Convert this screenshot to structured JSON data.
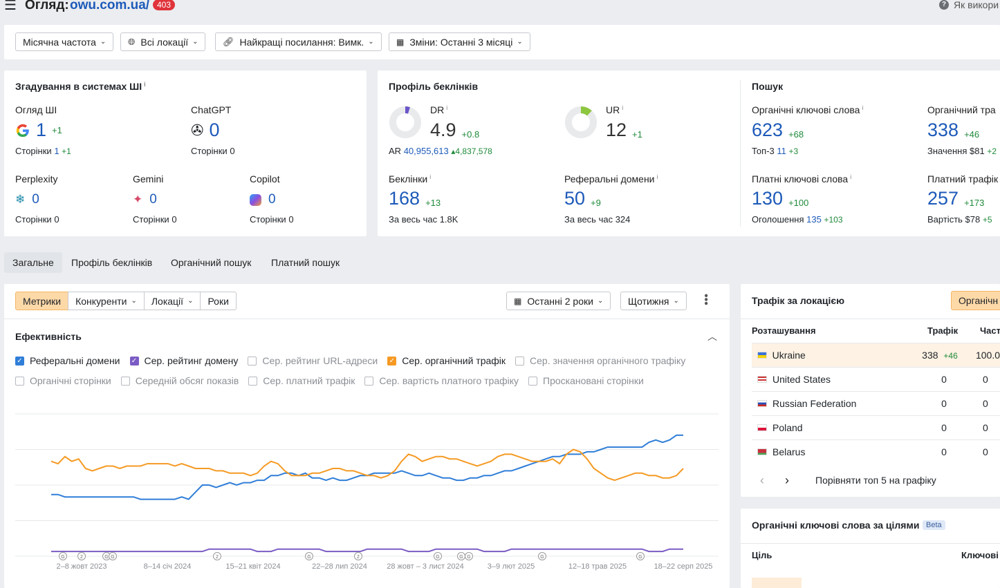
{
  "header": {
    "title_prefix": "Огляд:",
    "domain": "owu.com.ua/",
    "badge": "403",
    "help_text": "Як викори"
  },
  "filters": {
    "frequency": "Місячна частота",
    "locations": "Всі локації",
    "best_links": "Найкращі посилання: Вимк.",
    "changes": "Зміни: Останні 3 місяці"
  },
  "ai_mentions": {
    "title": "Згадування в системах ШІ",
    "overview": {
      "label": "Огляд ШІ",
      "value": "1",
      "delta": "+1",
      "pages_label": "Сторінки",
      "pages": "1",
      "pages_delta": "+1"
    },
    "chatgpt": {
      "label": "ChatGPT",
      "value": "0",
      "pages_label": "Сторінки",
      "pages": "0"
    },
    "perplexity": {
      "label": "Perplexity",
      "value": "0",
      "pages_label": "Сторінки",
      "pages": "0"
    },
    "gemini": {
      "label": "Gemini",
      "value": "0",
      "pages_label": "Сторінки",
      "pages": "0"
    },
    "copilot": {
      "label": "Copilot",
      "value": "0",
      "pages_label": "Сторінки",
      "pages": "0"
    }
  },
  "backlinks": {
    "title": "Профіль беклінків",
    "dr": {
      "label": "DR",
      "value": "4.9",
      "delta": "+0.8",
      "fill": 0.049
    },
    "ar": {
      "label": "AR",
      "value": "40,955,613",
      "delta": "4,837,578"
    },
    "ur": {
      "label": "UR",
      "value": "12",
      "delta": "+1",
      "fill": 0.12
    },
    "links": {
      "label": "Беклінки",
      "value": "168",
      "delta": "+13",
      "all_label": "За весь час",
      "all": "1.8K"
    },
    "ref_domains": {
      "label": "Реферальні домени",
      "value": "50",
      "delta": "+9",
      "all_label": "За весь час",
      "all": "324"
    }
  },
  "search": {
    "title": "Пошук",
    "organic_kw": {
      "label": "Органічні ключові слова",
      "value": "623",
      "delta": "+68",
      "sub_label": "Топ-3",
      "sub": "11",
      "sub_delta": "+3"
    },
    "organic_traffic": {
      "label": "Органічний тра",
      "value": "338",
      "delta": "+46",
      "sub_label": "Значення",
      "sub": "$81",
      "sub_delta": "+2"
    },
    "paid_kw": {
      "label": "Платні ключові слова",
      "value": "130",
      "delta": "+100",
      "sub_label": "Оголошення",
      "sub": "135",
      "sub_delta": "+103"
    },
    "paid_traffic": {
      "label": "Платний трафік",
      "value": "257",
      "delta": "+173",
      "sub_label": "Вартість",
      "sub": "$78",
      "sub_delta": "+5"
    }
  },
  "tabs": [
    "Загальне",
    "Профіль беклінків",
    "Органічний пошук",
    "Платний пошук"
  ],
  "chart_panel": {
    "segments": [
      "Метрики",
      "Конкуренти",
      "Локації",
      "Роки"
    ],
    "range": "Останні 2 роки",
    "interval": "Щотижня",
    "section_title": "Ефективність",
    "checkboxes_row1": [
      {
        "label": "Реферальні домени",
        "checked": true,
        "color": "#2f7ed8"
      },
      {
        "label": "Сер. рейтинг домену",
        "checked": true,
        "color": "#7b5cc4"
      },
      {
        "label": "Сер. рейтинг URL-адреси",
        "checked": false
      },
      {
        "label": "Сер. органічний трафік",
        "checked": true,
        "color": "#f59a23"
      },
      {
        "label": "Сер. значення органічного трафіку",
        "checked": false
      }
    ],
    "checkboxes_row2": [
      {
        "label": "Органічні сторінки",
        "checked": false
      },
      {
        "label": "Середній обсяг показів",
        "checked": false
      },
      {
        "label": "Сер. платний трафік",
        "checked": false
      },
      {
        "label": "Сер. вартість платного трафіку",
        "checked": false
      },
      {
        "label": "Проскановані сторінки",
        "checked": false
      }
    ]
  },
  "chart_data": {
    "type": "line",
    "x_ticks": [
      "2–8 жовт 2023",
      "8–14 січ 2024",
      "15–21 квіт 2024",
      "22–28 лип 2024",
      "28 жовт – 3 лист 2024",
      "3–9 лют 2025",
      "12–18 трав 2025",
      "18–22 серп 2025"
    ],
    "grid": true,
    "series": [
      {
        "name": "Реферальні домени",
        "color": "#2f7ed8",
        "values": [
          26,
          26,
          25,
          25,
          25,
          25,
          25,
          25,
          25,
          25,
          25,
          25,
          25,
          24,
          24,
          24,
          24,
          24,
          24,
          25,
          24,
          27,
          30,
          30,
          29,
          30,
          31,
          30,
          31,
          31,
          32,
          32,
          34,
          34,
          35,
          35,
          34,
          35,
          33,
          33,
          32,
          33,
          32,
          32,
          33,
          34,
          34,
          35,
          35,
          35,
          35,
          36,
          35,
          34,
          34,
          35,
          34,
          33,
          33,
          32,
          32,
          33,
          33,
          34,
          34,
          35,
          36,
          36,
          37,
          38,
          39,
          40,
          41,
          42,
          42,
          43,
          43,
          43,
          44,
          44,
          45,
          46,
          46,
          46,
          46,
          46,
          46,
          48,
          49,
          48,
          49,
          51,
          51
        ]
      },
      {
        "name": "Сер. рейтинг домену",
        "color": "#7b5cc4",
        "values": [
          2,
          2,
          2,
          2,
          2,
          2,
          2,
          2,
          2,
          2,
          2,
          2,
          2,
          2,
          2,
          2,
          2,
          2,
          2,
          2,
          2,
          2,
          2,
          3,
          3,
          3,
          3,
          3,
          3,
          3,
          2,
          2,
          2,
          3,
          3,
          3,
          3,
          3,
          3,
          3,
          2,
          2,
          2,
          2,
          2,
          2,
          3,
          3,
          3,
          3,
          3,
          3,
          2,
          2,
          2,
          2,
          3,
          3,
          3,
          3,
          3,
          3,
          3,
          2,
          2,
          2,
          2,
          3,
          3,
          3,
          3,
          3,
          3,
          3,
          3,
          3,
          3,
          3,
          3,
          3,
          3,
          3,
          3,
          3,
          3,
          3,
          3,
          2,
          2,
          2,
          3,
          3,
          3
        ]
      },
      {
        "name": "Сер. органічний трафік",
        "color": "#f59a23",
        "values": [
          40,
          39,
          42,
          40,
          41,
          37,
          36,
          37,
          38,
          38,
          37,
          38,
          38,
          38,
          39,
          39,
          39,
          39,
          38,
          39,
          38,
          37,
          37,
          37,
          36,
          36,
          35,
          35,
          35,
          34,
          35,
          38,
          40,
          39,
          36,
          34,
          34,
          34,
          35,
          35,
          36,
          37,
          37,
          36,
          36,
          35,
          34,
          34,
          33,
          34,
          36,
          40,
          43,
          42,
          40,
          41,
          42,
          42,
          41,
          41,
          40,
          39,
          38,
          39,
          40,
          42,
          43,
          43,
          42,
          41,
          40,
          40,
          40,
          41,
          39,
          43,
          45,
          44,
          41,
          37,
          35,
          33,
          32,
          33,
          34,
          35,
          35,
          34,
          34,
          33,
          33,
          34,
          37
        ]
      }
    ],
    "annotations": [
      "G",
      "2",
      "G",
      "G",
      "2",
      "G",
      "2",
      "G",
      "G",
      "G",
      "G",
      "G"
    ]
  },
  "traffic_by_location": {
    "title": "Трафік за локацією",
    "toggle": "Органічн",
    "columns": [
      "Розташування",
      "Трафік",
      "Части"
    ],
    "rows": [
      {
        "country": "Ukraine",
        "traffic": "338",
        "delta": "+46",
        "share": "100.0",
        "flag": "ua"
      },
      {
        "country": "United States",
        "traffic": "0",
        "delta": "",
        "share": "0",
        "flag": "us"
      },
      {
        "country": "Russian Federation",
        "traffic": "0",
        "delta": "",
        "share": "0",
        "flag": "ru"
      },
      {
        "country": "Poland",
        "traffic": "0",
        "delta": "",
        "share": "0",
        "flag": "pl"
      },
      {
        "country": "Belarus",
        "traffic": "0",
        "delta": "",
        "share": "0",
        "flag": "by"
      }
    ],
    "compare": "Порівняти топ 5 на графіку"
  },
  "organic_kw_goals": {
    "title": "Органічні ключові слова за цілями",
    "badge": "Beta",
    "col_goal": "Ціль",
    "col_kw": "Ключові"
  }
}
